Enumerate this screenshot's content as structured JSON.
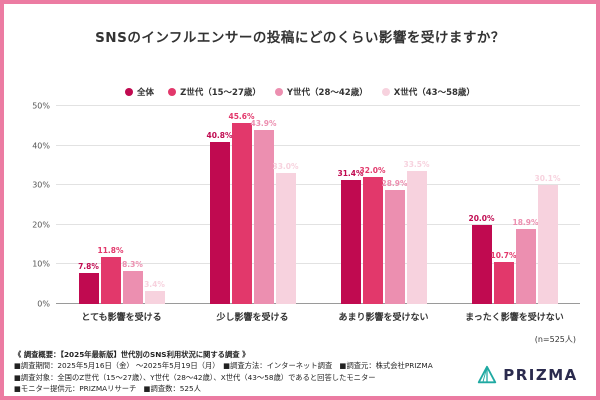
{
  "title": "SNSのインフルエンサーの投稿にどのくらい影響を受けますか？",
  "chart_data": {
    "type": "bar",
    "title": "SNSのインフルエンサーの投稿にどのくらい影響を受けますか？",
    "categories": [
      "とても影響を受ける",
      "少し影響を受ける",
      "あまり影響を受けない",
      "まったく影響を受けない"
    ],
    "series": [
      {
        "name": "全体",
        "color": "#c00a50",
        "values": [
          7.8,
          40.8,
          31.4,
          20.0
        ]
      },
      {
        "name": "Z世代（15〜27歳）",
        "color": "#e2386b",
        "values": [
          11.8,
          45.6,
          32.0,
          10.7
        ]
      },
      {
        "name": "Y世代（28〜42歳）",
        "color": "#ec8fb0",
        "values": [
          8.3,
          43.9,
          28.9,
          18.9
        ]
      },
      {
        "name": "X世代（43〜58歳）",
        "color": "#f7d2de",
        "values": [
          3.4,
          33.0,
          33.5,
          30.1
        ]
      }
    ],
    "ylim": [
      0,
      50
    ],
    "yticks": [
      "0%",
      "10%",
      "20%",
      "30%",
      "40%",
      "50%"
    ],
    "legend_position": "top",
    "grid": true,
    "value_label_suffix": "%"
  },
  "sample_note": "(n=525人)",
  "footer": {
    "line1": "《 調査概要：【2025年最新版】世代別のSNS利用状況に関する調査 》",
    "line2": "■調査期間：2025年5月16日（金） 〜2025年5月19日（月）　■調査方法：インターネット調査　■調査元：株式会社PRIZMA",
    "line3": "■調査対象：全国のZ世代（15〜27歳）、Y世代（28〜42歳）、X世代（43〜58歳）であると回答したモニター",
    "line4": "■モニター提供元：PRIZMAリサーチ　■調査数：525人"
  },
  "logo": {
    "text": "PRIZMA",
    "accent_color": "#1fa9a2"
  },
  "frame": {
    "border_color": "#ec7ba2"
  }
}
